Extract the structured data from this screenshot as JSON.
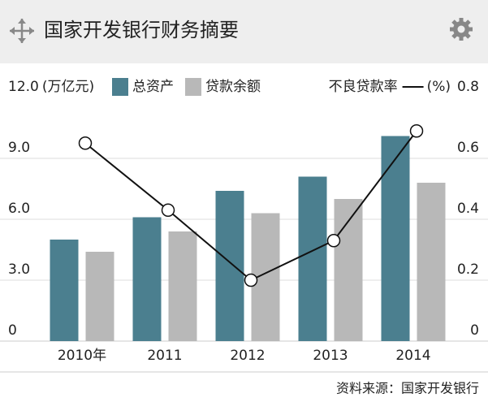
{
  "chart_data": {
    "type": "bar",
    "title": "国家开发银行财务摘要",
    "categories": [
      "2010年",
      "2011",
      "2012",
      "2013",
      "2014"
    ],
    "series": [
      {
        "name": "总资产",
        "color": "#4b7f8f",
        "values": [
          5.0,
          6.1,
          7.4,
          8.1,
          10.1
        ]
      },
      {
        "name": "贷款余额",
        "color": "#b8b8b8",
        "values": [
          4.4,
          5.4,
          6.3,
          7.0,
          7.8
        ]
      },
      {
        "name": "不良贷款率",
        "color": "#111111",
        "type": "line",
        "axis": "y2",
        "values": [
          0.65,
          0.43,
          0.2,
          0.33,
          0.69
        ]
      }
    ],
    "y_label": "(万亿元)",
    "y2_label": "(%)",
    "ylim": [
      0,
      12
    ],
    "yticks": [
      0,
      {
        "value": 3,
        "label": "3.0"
      },
      {
        "value": 6,
        "label": "6.0"
      },
      {
        "value": 9,
        "label": "9.0"
      },
      {
        "value": 12,
        "label": "12.0"
      }
    ],
    "y2lim": [
      0,
      0.8
    ],
    "y2ticks": [
      0,
      0.2,
      0.4,
      0.6,
      0.8
    ],
    "grid": true,
    "source": "资料来源：国家开发银行"
  }
}
